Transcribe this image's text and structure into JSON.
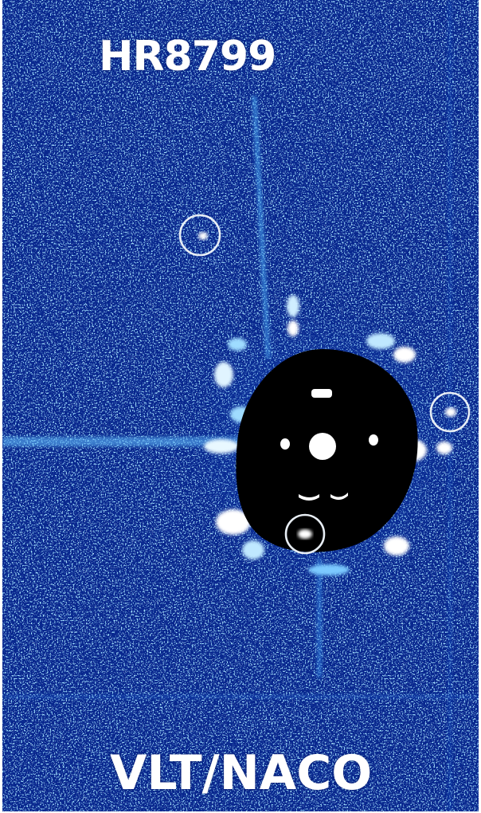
{
  "image": {
    "target_label": "HR8799",
    "instrument_label": "VLT/NACO",
    "marked_sources": 3,
    "colors": {
      "background_blue": "#0a2fa0",
      "deep_blue": "#061a6e",
      "speckle_cyan": "#5fc8ff",
      "core_black": "#000000",
      "text_white": "#ffffff",
      "circle_white": "#e8eef5"
    }
  }
}
